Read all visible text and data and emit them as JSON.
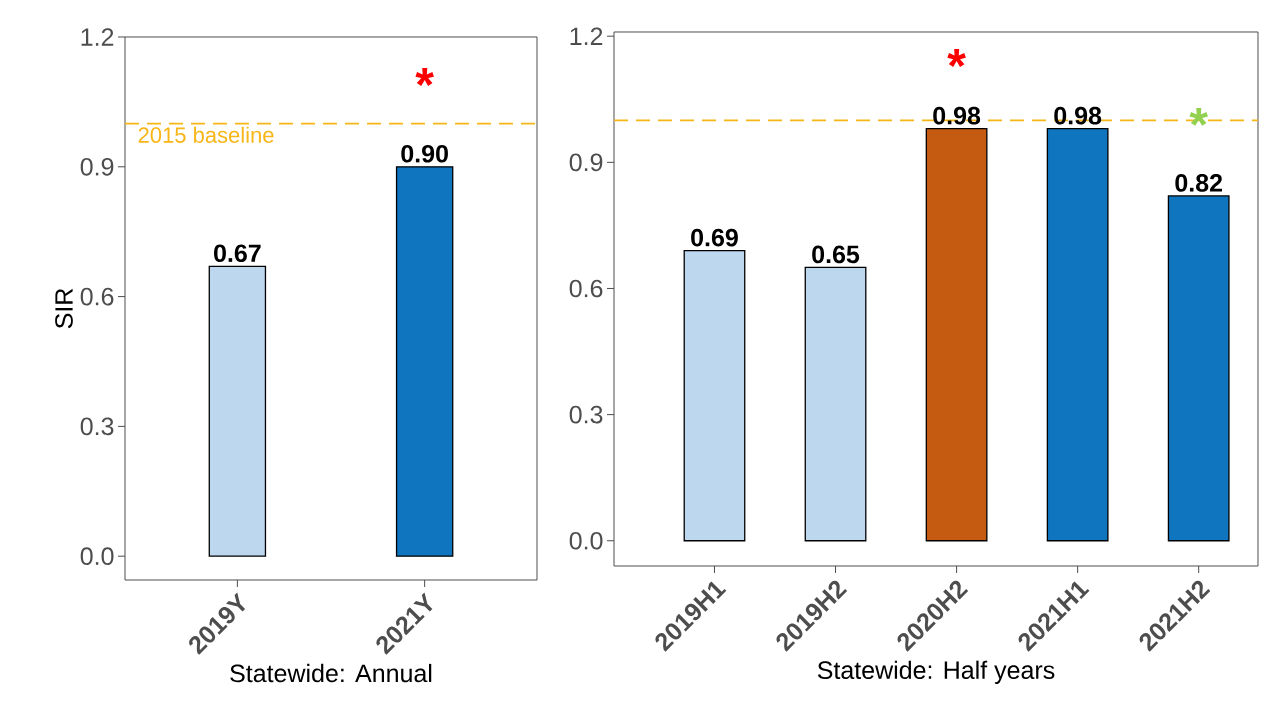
{
  "chart_data": [
    {
      "type": "bar",
      "xlabel": "Statewide: Annual",
      "ylabel": "SIR",
      "categories": [
        "2019Y",
        "2021Y"
      ],
      "values": [
        0.67,
        0.9
      ],
      "colors": [
        "#bdd7ee",
        "#0e75be"
      ],
      "value_labels": [
        "0.67",
        "0.90"
      ],
      "ylim": [
        -0.055,
        1.2
      ],
      "yticks": [
        {
          "value": 0,
          "label": "0.0"
        },
        {
          "value": 0.3,
          "label": "0.3"
        },
        {
          "value": 0.6,
          "label": "0.6"
        },
        {
          "value": 0.9,
          "label": "0.9"
        },
        {
          "value": 1.2,
          "label": "1.2"
        }
      ],
      "ref_lines": [
        {
          "axis": "y",
          "value": 1.0,
          "label": "2015 baseline",
          "color": "#f7b516",
          "line_style": "dashed"
        }
      ],
      "annotations": [
        "*"
      ]
    },
    {
      "type": "bar",
      "xlabel": "Statewide: Half years",
      "categories": [
        "2019H1",
        "2019H2",
        "2020H2",
        "2021H1",
        "2021H2"
      ],
      "values": [
        0.69,
        0.65,
        0.98,
        0.98,
        0.82
      ],
      "colors": [
        "#bdd7ee",
        "#bdd7ee",
        "#c55a11",
        "#0e75be",
        "#0e75be"
      ],
      "value_labels": [
        "0.69",
        "0.65",
        "0.98",
        "0.98",
        "0.82"
      ],
      "ylim": [
        -0.06,
        1.21
      ],
      "yticks": [
        {
          "value": 0,
          "label": "0.0"
        },
        {
          "value": 0.3,
          "label": "0.3"
        },
        {
          "value": 0.6,
          "label": "0.6"
        },
        {
          "value": 0.9,
          "label": "0.9"
        },
        {
          "value": 1.2,
          "label": "1.2"
        }
      ],
      "ref_lines": [
        {
          "axis": "y",
          "value": 1.0,
          "color": "#f7b516",
          "line_style": "dashed"
        }
      ],
      "annotations": [
        "*",
        "*"
      ]
    }
  ]
}
